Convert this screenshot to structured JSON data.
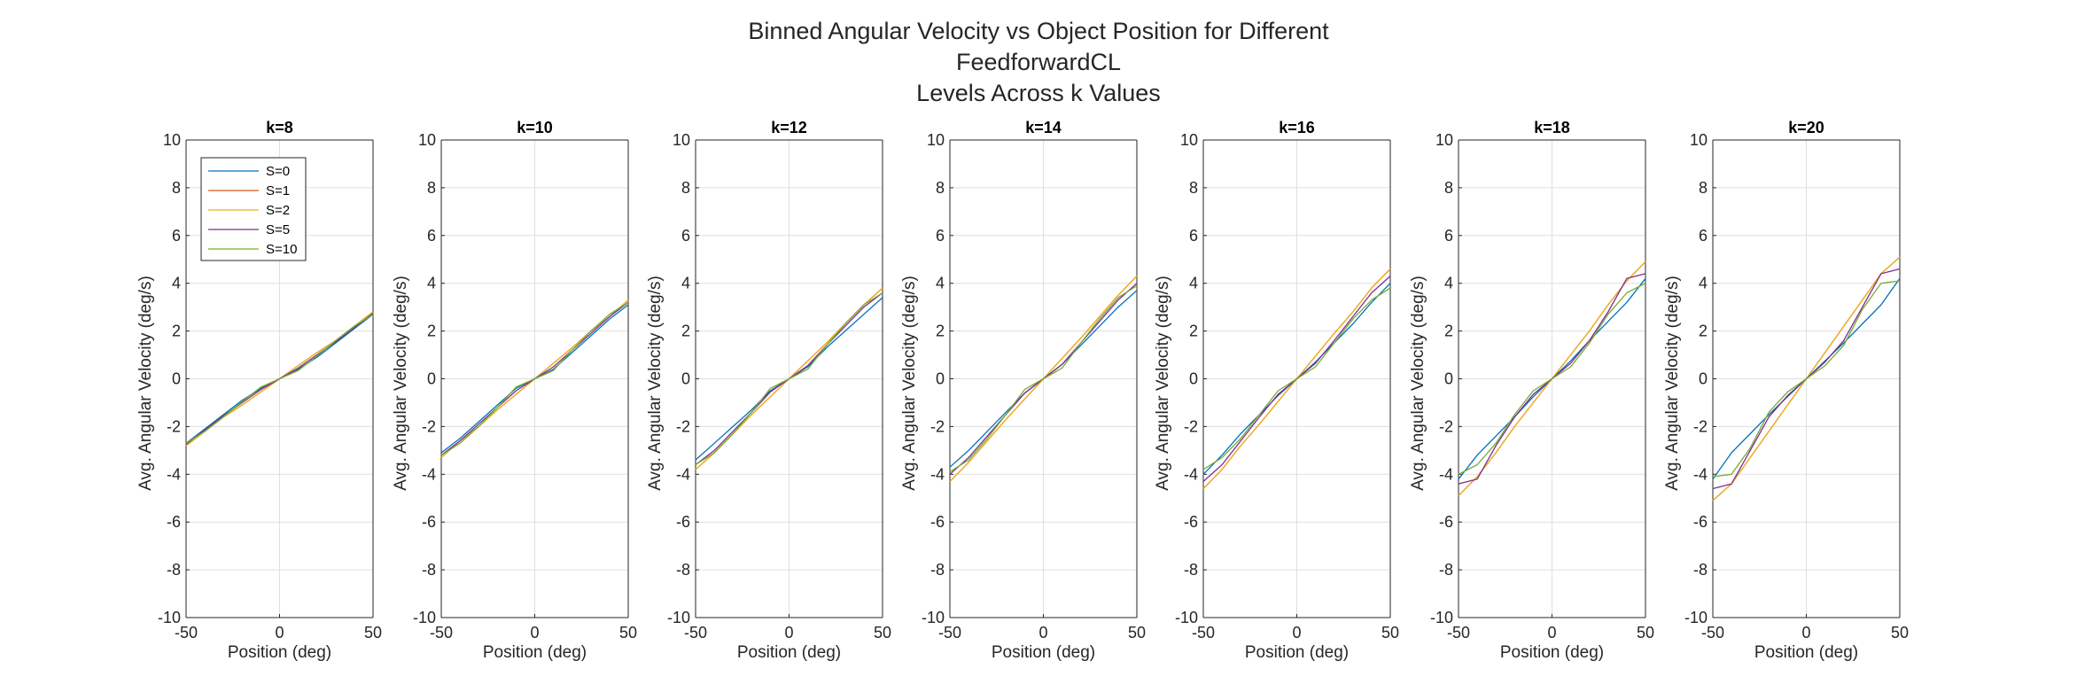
{
  "figure": {
    "title_lines": [
      "Binned Angular Velocity vs Object Position for Different",
      "FeedforwardCL",
      "Levels Across k Values"
    ]
  },
  "chart_data": {
    "type": "line",
    "xlabel": "Position (deg)",
    "ylabel": "Avg. Angular Velocity (deg/s)",
    "xlim": [
      -50,
      50
    ],
    "ylim": [
      -10,
      10
    ],
    "xticks": [
      -50,
      0,
      50
    ],
    "yticks": [
      -10,
      -8,
      -6,
      -4,
      -2,
      0,
      2,
      4,
      6,
      8,
      10
    ],
    "grid": true,
    "legend_location": "top-left of first panel",
    "x": [
      -50,
      -40,
      -30,
      -20,
      -10,
      0,
      10,
      20,
      30,
      40,
      50
    ],
    "series_names": [
      "S=0",
      "S=1",
      "S=2",
      "S=5",
      "S=10"
    ],
    "series_colors": [
      "#0072BD",
      "#D95319",
      "#EDB120",
      "#7E2F8E",
      "#77AC30"
    ],
    "panels": [
      {
        "title": "k=8",
        "series": [
          {
            "name": "S=0",
            "values": [
              -2.7,
              -2.1,
              -1.5,
              -0.9,
              -0.4,
              0,
              0.4,
              0.9,
              1.5,
              2.1,
              2.7
            ]
          },
          {
            "name": "S=1",
            "values": [
              -2.8,
              -2.2,
              -1.6,
              -1.1,
              -0.55,
              0,
              0.55,
              1.1,
              1.6,
              2.2,
              2.8
            ]
          },
          {
            "name": "S=2",
            "values": [
              -2.8,
              -2.2,
              -1.6,
              -1.1,
              -0.55,
              0,
              0.55,
              1.1,
              1.6,
              2.2,
              2.8
            ]
          },
          {
            "name": "S=5",
            "values": [
              -2.75,
              -2.15,
              -1.55,
              -1.0,
              -0.45,
              0,
              0.45,
              1.0,
              1.55,
              2.15,
              2.75
            ]
          },
          {
            "name": "S=10",
            "values": [
              -2.7,
              -2.2,
              -1.6,
              -0.95,
              -0.35,
              0,
              0.35,
              0.95,
              1.6,
              2.2,
              2.7
            ]
          }
        ]
      },
      {
        "title": "k=10",
        "series": [
          {
            "name": "S=0",
            "values": [
              -3.1,
              -2.5,
              -1.8,
              -1.1,
              -0.4,
              0,
              0.4,
              1.1,
              1.8,
              2.5,
              3.1
            ]
          },
          {
            "name": "S=1",
            "values": [
              -3.3,
              -2.6,
              -2.0,
              -1.3,
              -0.65,
              0,
              0.65,
              1.3,
              2.0,
              2.6,
              3.3
            ]
          },
          {
            "name": "S=2",
            "values": [
              -3.3,
              -2.6,
              -2.0,
              -1.3,
              -0.65,
              0,
              0.65,
              1.3,
              2.0,
              2.6,
              3.3
            ]
          },
          {
            "name": "S=5",
            "values": [
              -3.2,
              -2.6,
              -1.9,
              -1.2,
              -0.5,
              0,
              0.5,
              1.2,
              1.9,
              2.6,
              3.2
            ]
          },
          {
            "name": "S=10",
            "values": [
              -3.2,
              -2.7,
              -2.0,
              -1.2,
              -0.35,
              0,
              0.35,
              1.2,
              2.0,
              2.7,
              3.2
            ]
          }
        ]
      },
      {
        "title": "k=12",
        "series": [
          {
            "name": "S=0",
            "values": [
              -3.4,
              -2.7,
              -2.0,
              -1.3,
              -0.5,
              0,
              0.5,
              1.3,
              2.0,
              2.7,
              3.4
            ]
          },
          {
            "name": "S=1",
            "values": [
              -3.8,
              -3.1,
              -2.3,
              -1.5,
              -0.75,
              0,
              0.75,
              1.5,
              2.3,
              3.1,
              3.8
            ]
          },
          {
            "name": "S=2",
            "values": [
              -3.8,
              -3.1,
              -2.3,
              -1.5,
              -0.75,
              0,
              0.75,
              1.5,
              2.3,
              3.1,
              3.8
            ]
          },
          {
            "name": "S=5",
            "values": [
              -3.6,
              -3.0,
              -2.2,
              -1.4,
              -0.55,
              0,
              0.55,
              1.4,
              2.2,
              3.0,
              3.6
            ]
          },
          {
            "name": "S=10",
            "values": [
              -3.6,
              -3.1,
              -2.3,
              -1.4,
              -0.4,
              0,
              0.4,
              1.4,
              2.3,
              3.1,
              3.6
            ]
          }
        ]
      },
      {
        "title": "k=14",
        "series": [
          {
            "name": "S=0",
            "values": [
              -3.7,
              -3.0,
              -2.2,
              -1.4,
              -0.6,
              0,
              0.6,
              1.4,
              2.2,
              3.0,
              3.7
            ]
          },
          {
            "name": "S=1",
            "values": [
              -4.3,
              -3.5,
              -2.6,
              -1.7,
              -0.85,
              0,
              0.85,
              1.7,
              2.6,
              3.5,
              4.3
            ]
          },
          {
            "name": "S=2",
            "values": [
              -4.3,
              -3.5,
              -2.6,
              -1.7,
              -0.85,
              0,
              0.85,
              1.7,
              2.6,
              3.5,
              4.3
            ]
          },
          {
            "name": "S=5",
            "values": [
              -4.0,
              -3.3,
              -2.4,
              -1.5,
              -0.6,
              0,
              0.6,
              1.5,
              2.4,
              3.3,
              4.0
            ]
          },
          {
            "name": "S=10",
            "values": [
              -3.9,
              -3.4,
              -2.5,
              -1.5,
              -0.45,
              0,
              0.45,
              1.5,
              2.5,
              3.4,
              3.9
            ]
          }
        ]
      },
      {
        "title": "k=16",
        "series": [
          {
            "name": "S=0",
            "values": [
              -4.0,
              -3.2,
              -2.3,
              -1.5,
              -0.7,
              0,
              0.7,
              1.5,
              2.3,
              3.2,
              4.0
            ]
          },
          {
            "name": "S=1",
            "values": [
              -4.6,
              -3.8,
              -2.8,
              -1.9,
              -0.95,
              0,
              0.95,
              1.9,
              2.8,
              3.8,
              4.6
            ]
          },
          {
            "name": "S=2",
            "values": [
              -4.6,
              -3.8,
              -2.8,
              -1.9,
              -0.95,
              0,
              0.95,
              1.9,
              2.8,
              3.8,
              4.6
            ]
          },
          {
            "name": "S=5",
            "values": [
              -4.3,
              -3.6,
              -2.6,
              -1.6,
              -0.65,
              0,
              0.65,
              1.6,
              2.6,
              3.6,
              4.3
            ]
          },
          {
            "name": "S=10",
            "values": [
              -3.8,
              -3.3,
              -2.5,
              -1.5,
              -0.5,
              0,
              0.5,
              1.5,
              2.5,
              3.3,
              3.8
            ]
          }
        ]
      },
      {
        "title": "k=18",
        "series": [
          {
            "name": "S=0",
            "values": [
              -4.2,
              -3.2,
              -2.4,
              -1.6,
              -0.75,
              0,
              0.75,
              1.6,
              2.4,
              3.2,
              4.2
            ]
          },
          {
            "name": "S=1",
            "values": [
              -4.9,
              -4.1,
              -3.1,
              -2.0,
              -1.0,
              0,
              1.0,
              2.0,
              3.1,
              4.1,
              4.9
            ]
          },
          {
            "name": "S=2",
            "values": [
              -4.9,
              -4.1,
              -3.1,
              -2.0,
              -1.0,
              0,
              1.0,
              2.0,
              3.1,
              4.1,
              4.9
            ]
          },
          {
            "name": "S=5",
            "values": [
              -4.4,
              -4.2,
              -2.8,
              -1.6,
              -0.65,
              0,
              0.65,
              1.6,
              2.8,
              4.2,
              4.4
            ]
          },
          {
            "name": "S=10",
            "values": [
              -4.0,
              -3.6,
              -2.7,
              -1.5,
              -0.5,
              0,
              0.5,
              1.5,
              2.7,
              3.6,
              4.0
            ]
          }
        ]
      },
      {
        "title": "k=20",
        "series": [
          {
            "name": "S=0",
            "values": [
              -4.2,
              -3.1,
              -2.3,
              -1.5,
              -0.75,
              0,
              0.75,
              1.5,
              2.3,
              3.1,
              4.2
            ]
          },
          {
            "name": "S=1",
            "values": [
              -5.1,
              -4.4,
              -3.3,
              -2.2,
              -1.1,
              0,
              1.1,
              2.2,
              3.3,
              4.4,
              5.1
            ]
          },
          {
            "name": "S=2",
            "values": [
              -5.1,
              -4.4,
              -3.3,
              -2.2,
              -1.1,
              0,
              1.1,
              2.2,
              3.3,
              4.4,
              5.1
            ]
          },
          {
            "name": "S=5",
            "values": [
              -4.6,
              -4.4,
              -3.0,
              -1.6,
              -0.7,
              0,
              0.7,
              1.6,
              3.0,
              4.4,
              4.6
            ]
          },
          {
            "name": "S=10",
            "values": [
              -4.1,
              -4.0,
              -2.9,
              -1.4,
              -0.55,
              0,
              0.55,
              1.4,
              2.9,
              4.0,
              4.1
            ]
          }
        ]
      }
    ]
  }
}
